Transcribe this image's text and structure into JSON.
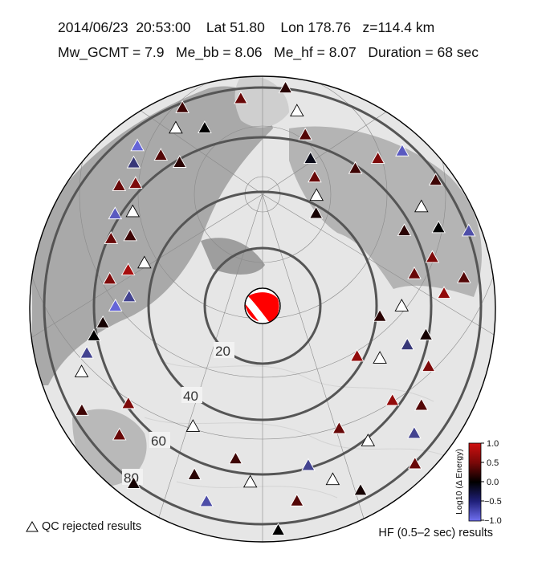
{
  "header": {
    "date": "2014/06/23",
    "time": "20:53:00",
    "lat": "Lat 51.80",
    "lon": "Lon 178.76",
    "depth": "z=114.4 km",
    "mw": "Mw_GCMT = 7.9",
    "me_bb": "Me_bb = 8.06",
    "me_hf": "Me_hf = 8.07",
    "duration": "Duration = 68 sec"
  },
  "distance_rings": {
    "labels": [
      "20",
      "40",
      "60",
      "80"
    ]
  },
  "colorbar": {
    "title": "Log10 (Δ Energy)",
    "ticks": [
      "1.0",
      "0.5",
      "0.0",
      "−0.5",
      "−1.0"
    ],
    "min": -1.0,
    "max": 1.0,
    "colors": {
      "high": "#d01010",
      "zero": "#000000",
      "low": "#7070f0"
    }
  },
  "legend": {
    "rejected": "QC rejected results",
    "band": "HF (0.5–2 sec) results"
  },
  "stations": [
    {
      "lon": -110,
      "dist": 72,
      "v": null
    },
    {
      "lon": -105,
      "dist": 68,
      "v": -0.6
    },
    {
      "lon": -100,
      "dist": 64,
      "v": 0.0
    },
    {
      "lon": -96,
      "dist": 60,
      "v": 0.1
    },
    {
      "lon": -90,
      "dist": 55,
      "v": -0.9
    },
    {
      "lon": -86,
      "dist": 50,
      "v": -0.6
    },
    {
      "lon": -80,
      "dist": 58,
      "v": 0.6
    },
    {
      "lon": -75,
      "dist": 52,
      "v": 0.8
    },
    {
      "lon": -70,
      "dist": 47,
      "v": null
    },
    {
      "lon": -66,
      "dist": 62,
      "v": 0.5
    },
    {
      "lon": -62,
      "dist": 56,
      "v": 0.3
    },
    {
      "lon": -58,
      "dist": 65,
      "v": -0.8
    },
    {
      "lon": -54,
      "dist": 60,
      "v": null
    },
    {
      "lon": -50,
      "dist": 70,
      "v": 0.5
    },
    {
      "lon": -46,
      "dist": 66,
      "v": 0.6
    },
    {
      "lon": -42,
      "dist": 72,
      "v": -0.5
    },
    {
      "lon": -38,
      "dist": 76,
      "v": -0.9
    },
    {
      "lon": -34,
      "dist": 68,
      "v": 0.4
    },
    {
      "lon": -30,
      "dist": 62,
      "v": 0.2
    },
    {
      "lon": -26,
      "dist": 74,
      "v": null
    },
    {
      "lon": -22,
      "dist": 80,
      "v": 0.3
    },
    {
      "lon": -18,
      "dist": 70,
      "v": 0.0
    },
    {
      "lon": -14,
      "dist": 84,
      "v": -0.7
    },
    {
      "lon": -10,
      "dist": 90,
      "v": -0.8
    },
    {
      "lon": -6,
      "dist": 78,
      "v": 0.5
    },
    {
      "lon": -2,
      "dist": 86,
      "v": 0.6
    },
    {
      "lon": 2,
      "dist": 94,
      "v": -0.6
    },
    {
      "lon": 6,
      "dist": 82,
      "v": 0.2
    },
    {
      "lon": 10,
      "dist": 74,
      "v": null
    },
    {
      "lon": 14,
      "dist": 66,
      "v": 0.4
    },
    {
      "lon": 18,
      "dist": 58,
      "v": -0.1
    },
    {
      "lon": 22,
      "dist": 52,
      "v": 0.5
    },
    {
      "lon": 26,
      "dist": 46,
      "v": null
    },
    {
      "lon": 30,
      "dist": 40,
      "v": 0.1
    },
    {
      "lon": 34,
      "dist": 62,
      "v": 0.3
    },
    {
      "lon": 38,
      "dist": 70,
      "v": 0.6
    },
    {
      "lon": 42,
      "dist": 78,
      "v": -0.8
    },
    {
      "lon": 46,
      "dist": 86,
      "v": 0.5
    },
    {
      "lon": 50,
      "dist": 92,
      "v": 0.8
    },
    {
      "lon": 54,
      "dist": 80,
      "v": 0.3
    },
    {
      "lon": 58,
      "dist": 70,
      "v": null
    },
    {
      "lon": 62,
      "dist": 60,
      "v": 0.2
    },
    {
      "lon": 66,
      "dist": 72,
      "v": 0.0
    },
    {
      "lon": 70,
      "dist": 82,
      "v": -0.7
    },
    {
      "lon": 74,
      "dist": 66,
      "v": 0.6
    },
    {
      "lon": 78,
      "dist": 58,
      "v": 0.5
    },
    {
      "lon": 82,
      "dist": 76,
      "v": 0.4
    },
    {
      "lon": 86,
      "dist": 68,
      "v": 0.7
    },
    {
      "lon": 90,
      "dist": 52,
      "v": null
    },
    {
      "lon": 95,
      "dist": 44,
      "v": 0.2
    },
    {
      "lon": 100,
      "dist": 62,
      "v": 0.1
    },
    {
      "lon": 105,
      "dist": 56,
      "v": -0.5
    },
    {
      "lon": 110,
      "dist": 66,
      "v": 0.6
    },
    {
      "lon": 114,
      "dist": 48,
      "v": null
    },
    {
      "lon": 118,
      "dist": 40,
      "v": 0.7
    },
    {
      "lon": 122,
      "dist": 70,
      "v": 0.4
    },
    {
      "lon": 126,
      "dist": 60,
      "v": 0.7
    },
    {
      "lon": 130,
      "dist": 74,
      "v": -0.6
    },
    {
      "lon": 136,
      "dist": 82,
      "v": 0.5
    },
    {
      "lon": 142,
      "dist": 64,
      "v": null
    },
    {
      "lon": 148,
      "dist": 54,
      "v": 0.5
    },
    {
      "lon": 152,
      "dist": 78,
      "v": 0.1
    },
    {
      "lon": 158,
      "dist": 70,
      "v": null
    },
    {
      "lon": 164,
      "dist": 62,
      "v": -0.6
    },
    {
      "lon": 170,
      "dist": 74,
      "v": 0.4
    },
    {
      "lon": 176,
      "dist": 84,
      "v": 0.0
    },
    {
      "lon": -176,
      "dist": 66,
      "v": null
    },
    {
      "lon": -170,
      "dist": 58,
      "v": 0.3
    },
    {
      "lon": -164,
      "dist": 76,
      "v": -0.7
    },
    {
      "lon": -158,
      "dist": 68,
      "v": 0.2
    },
    {
      "lon": -150,
      "dist": 52,
      "v": null
    },
    {
      "lon": -144,
      "dist": 82,
      "v": 0.1
    },
    {
      "lon": -138,
      "dist": 88,
      "v": -0.7
    },
    {
      "lon": -132,
      "dist": 72,
      "v": 0.5
    },
    {
      "lon": -126,
      "dist": 62,
      "v": 0.6
    },
    {
      "lon": -120,
      "dist": 78,
      "v": 0.3
    },
    {
      "lon": -115,
      "dist": 86,
      "v": null
    }
  ]
}
